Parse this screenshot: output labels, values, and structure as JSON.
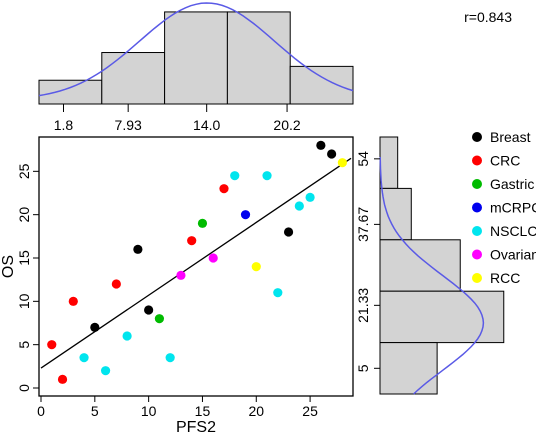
{
  "chart_data": [
    {
      "type": "scatter",
      "xlabel": "PFS2",
      "ylabel": "OS",
      "xlim": [
        0,
        28.8
      ],
      "ylim": [
        0,
        28.5
      ],
      "x_ticks": [
        0,
        5,
        10,
        15,
        20,
        25
      ],
      "y_ticks": [
        0,
        5,
        10,
        15,
        20,
        25
      ],
      "grid": false,
      "legend_position": "right",
      "annotation": "r=0.843",
      "regression_line": {
        "x": [
          0,
          28.8
        ],
        "y": [
          2.3,
          26.5
        ]
      },
      "series": [
        {
          "name": "Breast",
          "color": "#000000",
          "points": [
            [
              5,
              7
            ],
            [
              9,
              16
            ],
            [
              10,
              9
            ],
            [
              23,
              18
            ],
            [
              26,
              28
            ],
            [
              27,
              27
            ]
          ]
        },
        {
          "name": "CRC",
          "color": "#ff0000",
          "points": [
            [
              1,
              5
            ],
            [
              2,
              1
            ],
            [
              3,
              10
            ],
            [
              7,
              12
            ],
            [
              14,
              17
            ],
            [
              17,
              23
            ]
          ]
        },
        {
          "name": "Gastric",
          "color": "#00bb00",
          "points": [
            [
              11,
              8
            ],
            [
              15,
              19
            ]
          ]
        },
        {
          "name": "mCRPC",
          "color": "#0000ee",
          "points": [
            [
              19,
              20
            ]
          ]
        },
        {
          "name": "NSCLC",
          "color": "#00e5ee",
          "points": [
            [
              4,
              3.5
            ],
            [
              6,
              2
            ],
            [
              8,
              6
            ],
            [
              12,
              3.5
            ],
            [
              18,
              24.5
            ],
            [
              21,
              24.5
            ],
            [
              22,
              11
            ],
            [
              24,
              21
            ],
            [
              25,
              22
            ]
          ]
        },
        {
          "name": "Ovarian",
          "color": "#ff00ff",
          "points": [
            [
              13,
              13
            ],
            [
              16,
              15
            ]
          ]
        },
        {
          "name": "RCC",
          "color": "#ffff00",
          "points": [
            [
              20,
              14
            ],
            [
              28,
              26
            ]
          ]
        }
      ]
    },
    {
      "type": "bar",
      "orientation": "vertical",
      "variable": "PFS2",
      "tick_labels": [
        "1.8",
        "7.93",
        "14.0",
        "20.2"
      ],
      "values": [
        0.24,
        0.52,
        0.93,
        0.93,
        0.38
      ],
      "density_curve": true
    },
    {
      "type": "bar",
      "orientation": "horizontal",
      "variable": "OS",
      "tick_labels": [
        "54",
        "37.67",
        "21.33",
        "5"
      ],
      "values": [
        0.13,
        0.23,
        0.59,
        0.91,
        0.42
      ],
      "density_curve": true
    }
  ]
}
